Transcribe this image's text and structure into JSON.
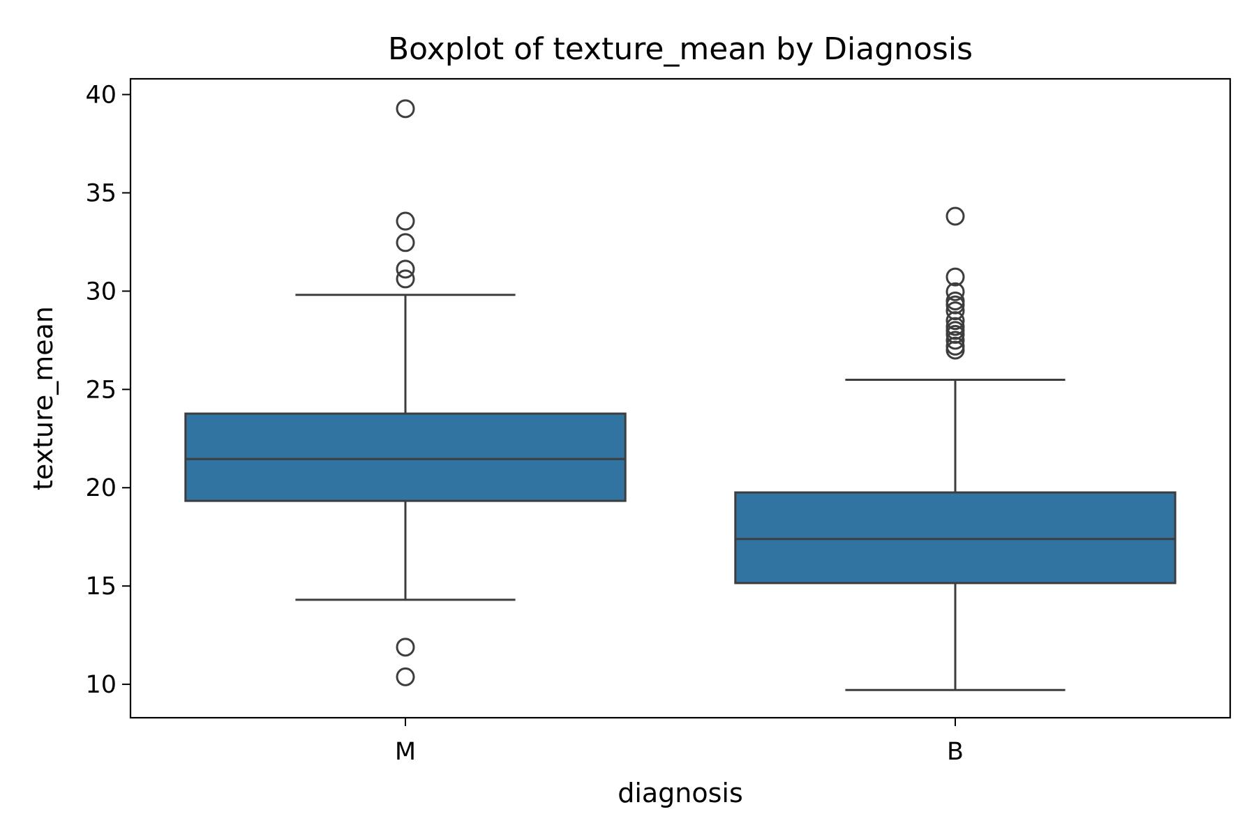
{
  "chart_data": {
    "type": "box",
    "title": "Boxplot of texture_mean by Diagnosis",
    "xlabel": "diagnosis",
    "ylabel": "texture_mean",
    "categories": [
      "M",
      "B"
    ],
    "ylim": [
      8.3,
      40.8
    ],
    "yticks": [
      10,
      15,
      20,
      25,
      30,
      35,
      40
    ],
    "grid": false,
    "legend": "none",
    "box_color": "#3274a1",
    "line_color": "#3d3d3d",
    "boxes": [
      {
        "category": "M",
        "whisker_low": 14.3,
        "q1": 19.33,
        "median": 21.46,
        "q3": 23.77,
        "whisker_high": 29.81,
        "outliers": [
          10.38,
          11.89,
          30.62,
          31.12,
          32.47,
          33.56,
          39.28
        ]
      },
      {
        "category": "B",
        "whisker_low": 9.71,
        "q1": 15.15,
        "median": 17.39,
        "q3": 19.76,
        "whisker_high": 25.49,
        "outliers": [
          27.0,
          27.2,
          27.5,
          27.8,
          28.0,
          28.2,
          28.5,
          29.0,
          29.3,
          29.5,
          29.97,
          30.72,
          33.81
        ]
      }
    ]
  }
}
